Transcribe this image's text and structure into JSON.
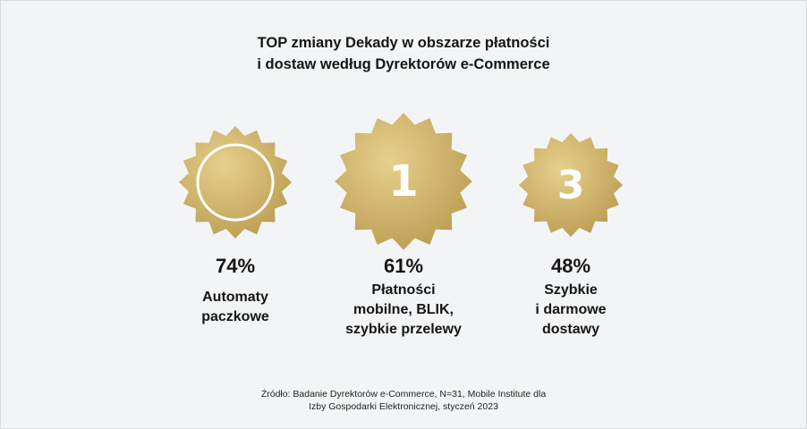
{
  "title": {
    "line1": "TOP zmiany Dekady w obszarze płatności",
    "line2": "i dostaw według Dyrektorów e-Commerce"
  },
  "items": [
    {
      "badge_number": "",
      "percent": "74%",
      "label_lines": [
        "Automaty",
        "paczkowe"
      ]
    },
    {
      "badge_number": "1",
      "percent": "61%",
      "label_lines": [
        "Płatności",
        "mobilne, BLIK,",
        "szybkie przelewy"
      ]
    },
    {
      "badge_number": "3",
      "percent": "48%",
      "label_lines": [
        "Szybkie",
        "i darmowe",
        "dostawy"
      ]
    }
  ],
  "source": {
    "line1": "Źródło: Badanie Dyrektorów e-Commerce, N=31, Mobile Institute dla",
    "line2": "Izby Gospodarki Elektronicznej, styczeń 2023"
  },
  "colors": {
    "gold_light": "#e6d08e",
    "gold_dark": "#b89a4e",
    "background": "#f3f4f5"
  }
}
